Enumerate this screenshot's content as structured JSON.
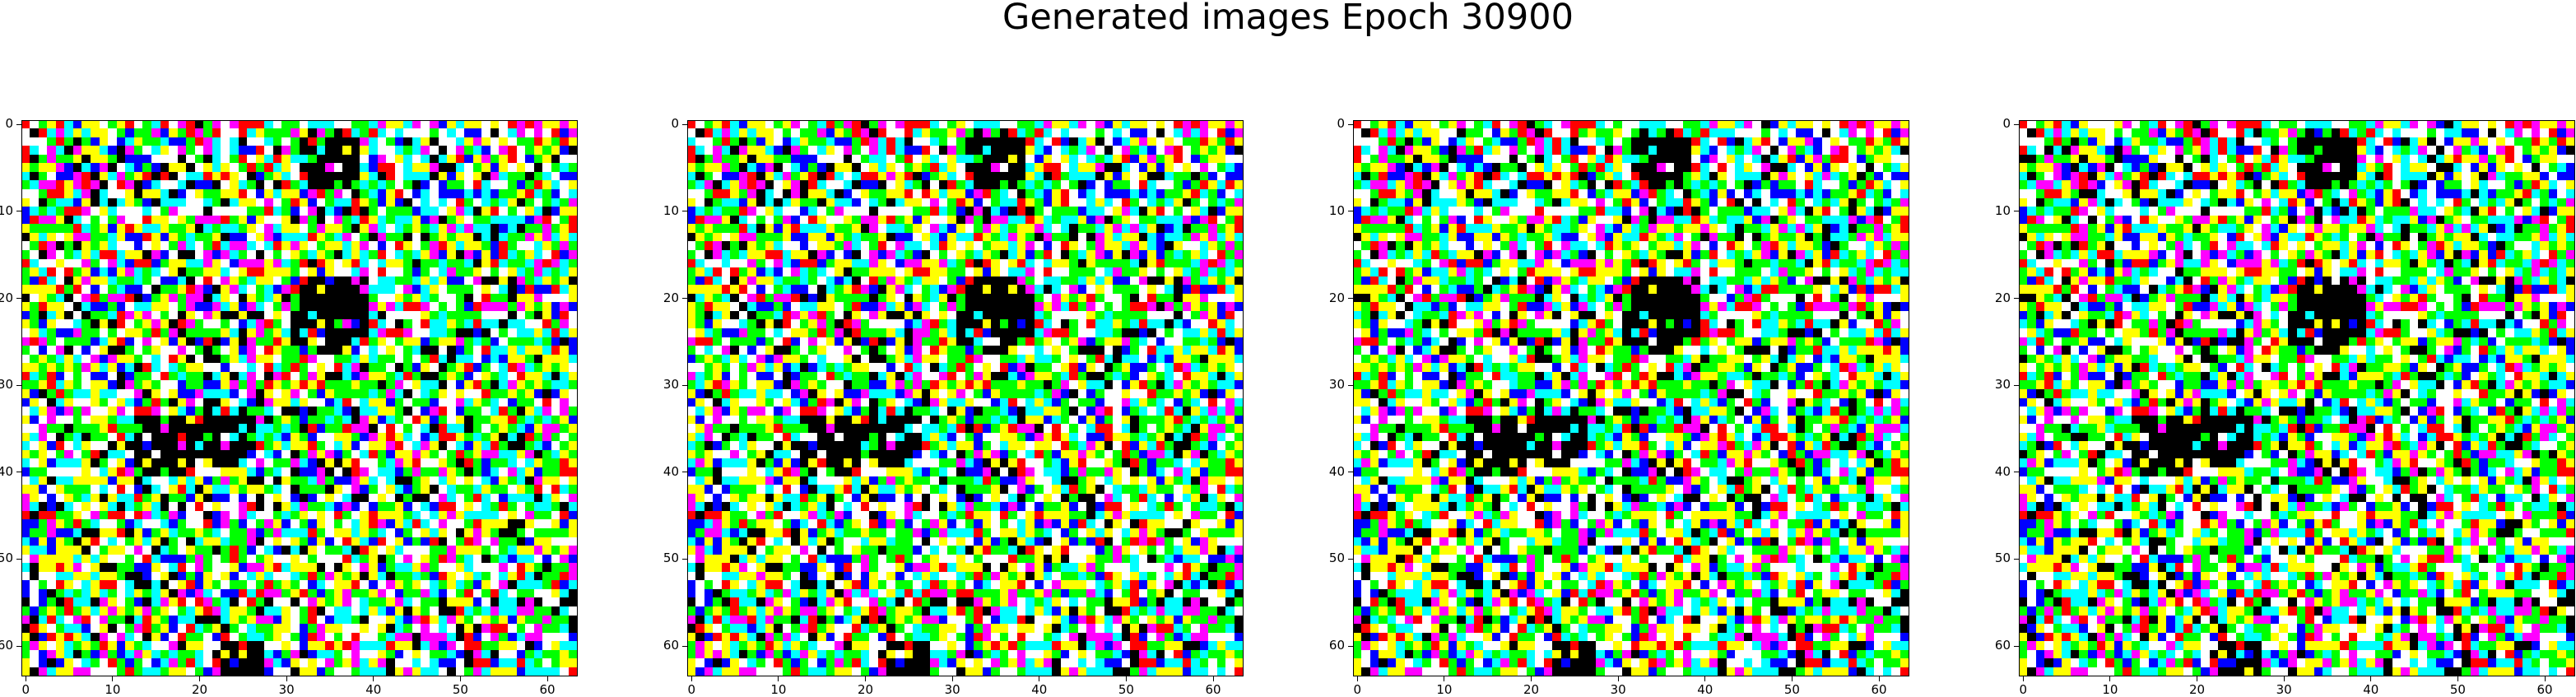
{
  "figure": {
    "title": "Generated images Epoch 30900"
  },
  "image_grid": {
    "count": 4,
    "pixels": 64,
    "palette": [
      "#ffffff",
      "#000000",
      "#ff0000",
      "#00ff00",
      "#0000ff",
      "#ffff00",
      "#00ffff",
      "#ff00ff",
      "#ffffff",
      "#ffff00",
      "#00ffff",
      "#00ff00"
    ],
    "x_ticks": [
      0,
      10,
      20,
      30,
      40,
      50,
      60
    ],
    "y_ticks": [
      0,
      10,
      20,
      30,
      40,
      50,
      60
    ]
  }
}
